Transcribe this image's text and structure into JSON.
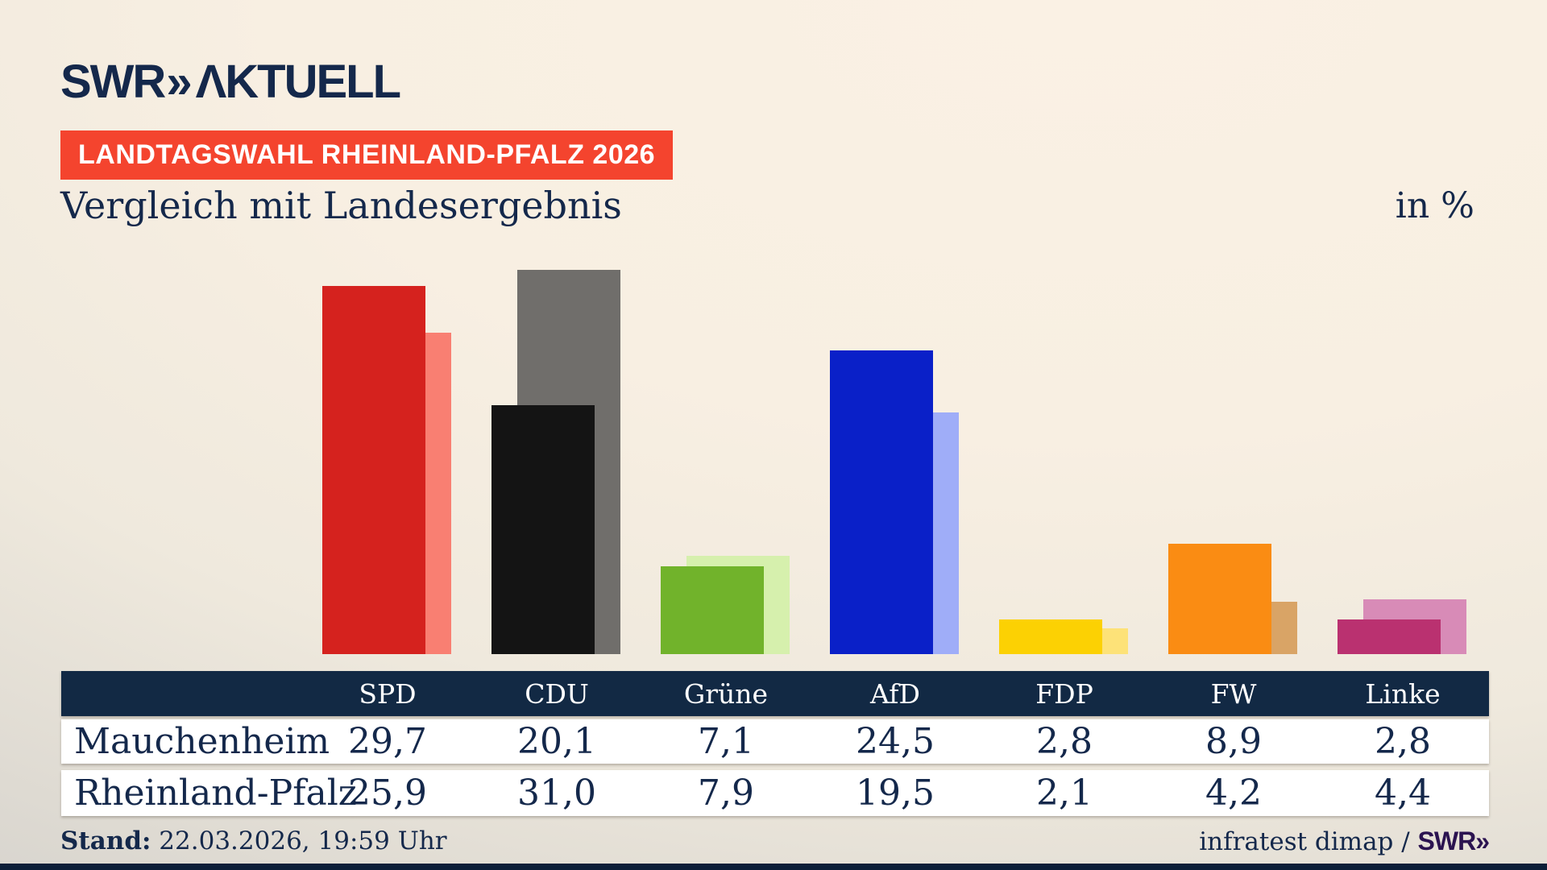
{
  "header": {
    "logo": {
      "brand": "SWR",
      "chevrons": "»",
      "product": "ΛKTUELL"
    },
    "badge": "LANDTAGSWAHL RHEINLAND-PFALZ 2026",
    "title": "Vergleich mit Landesergebnis",
    "unit_label": "in %"
  },
  "chart_data": {
    "type": "bar",
    "categories": [
      "SPD",
      "CDU",
      "Grüne",
      "AfD",
      "FDP",
      "FW",
      "Linke"
    ],
    "series": [
      {
        "name": "Mauchenheim",
        "role": "front",
        "values": [
          29.7,
          20.1,
          7.1,
          24.5,
          2.8,
          8.9,
          2.8
        ]
      },
      {
        "name": "Rheinland-Pfalz",
        "role": "back",
        "values": [
          25.9,
          31.0,
          7.9,
          19.5,
          2.1,
          4.2,
          4.4
        ]
      }
    ],
    "party_colors_front": [
      "#d5221e",
      "#141414",
      "#71b32b",
      "#0a20c8",
      "#fcd103",
      "#fa8c13",
      "#ba3170"
    ],
    "party_colors_back": [
      "#f97f72",
      "#706e6b",
      "#d6f0ad",
      "#9fadf8",
      "#fde278",
      "#d9a466",
      "#d88bb7"
    ],
    "unit": "%",
    "ylim": [
      0,
      31
    ],
    "grid": false,
    "legend": "none (series identified via table rows)"
  },
  "table": {
    "columns": [
      "SPD",
      "CDU",
      "Grüne",
      "AfD",
      "FDP",
      "FW",
      "Linke"
    ],
    "rows": [
      {
        "label": "Mauchenheim",
        "values": [
          "29,7",
          "20,1",
          "7,1",
          "24,5",
          "2,8",
          "8,9",
          "2,8"
        ]
      },
      {
        "label": "Rheinland-Pfalz",
        "values": [
          "25,9",
          "31,0",
          "7,9",
          "19,5",
          "2,1",
          "4,2",
          "4,4"
        ]
      }
    ]
  },
  "footer": {
    "stand_label": "Stand:",
    "stand_value": " 22.03.2026, 19:59 Uhr",
    "source": "infratest dimap / ",
    "source_logo": "SWR»"
  },
  "colors": {
    "background_top": "#faf1e4",
    "background_bottom_left": "#d6d3cd",
    "badge_red": "#f4442e",
    "navy_text": "#14284b",
    "table_header_bg": "#122944",
    "source_logo_purple": "#2b1350",
    "bottom_strip": "#0c1e38"
  }
}
